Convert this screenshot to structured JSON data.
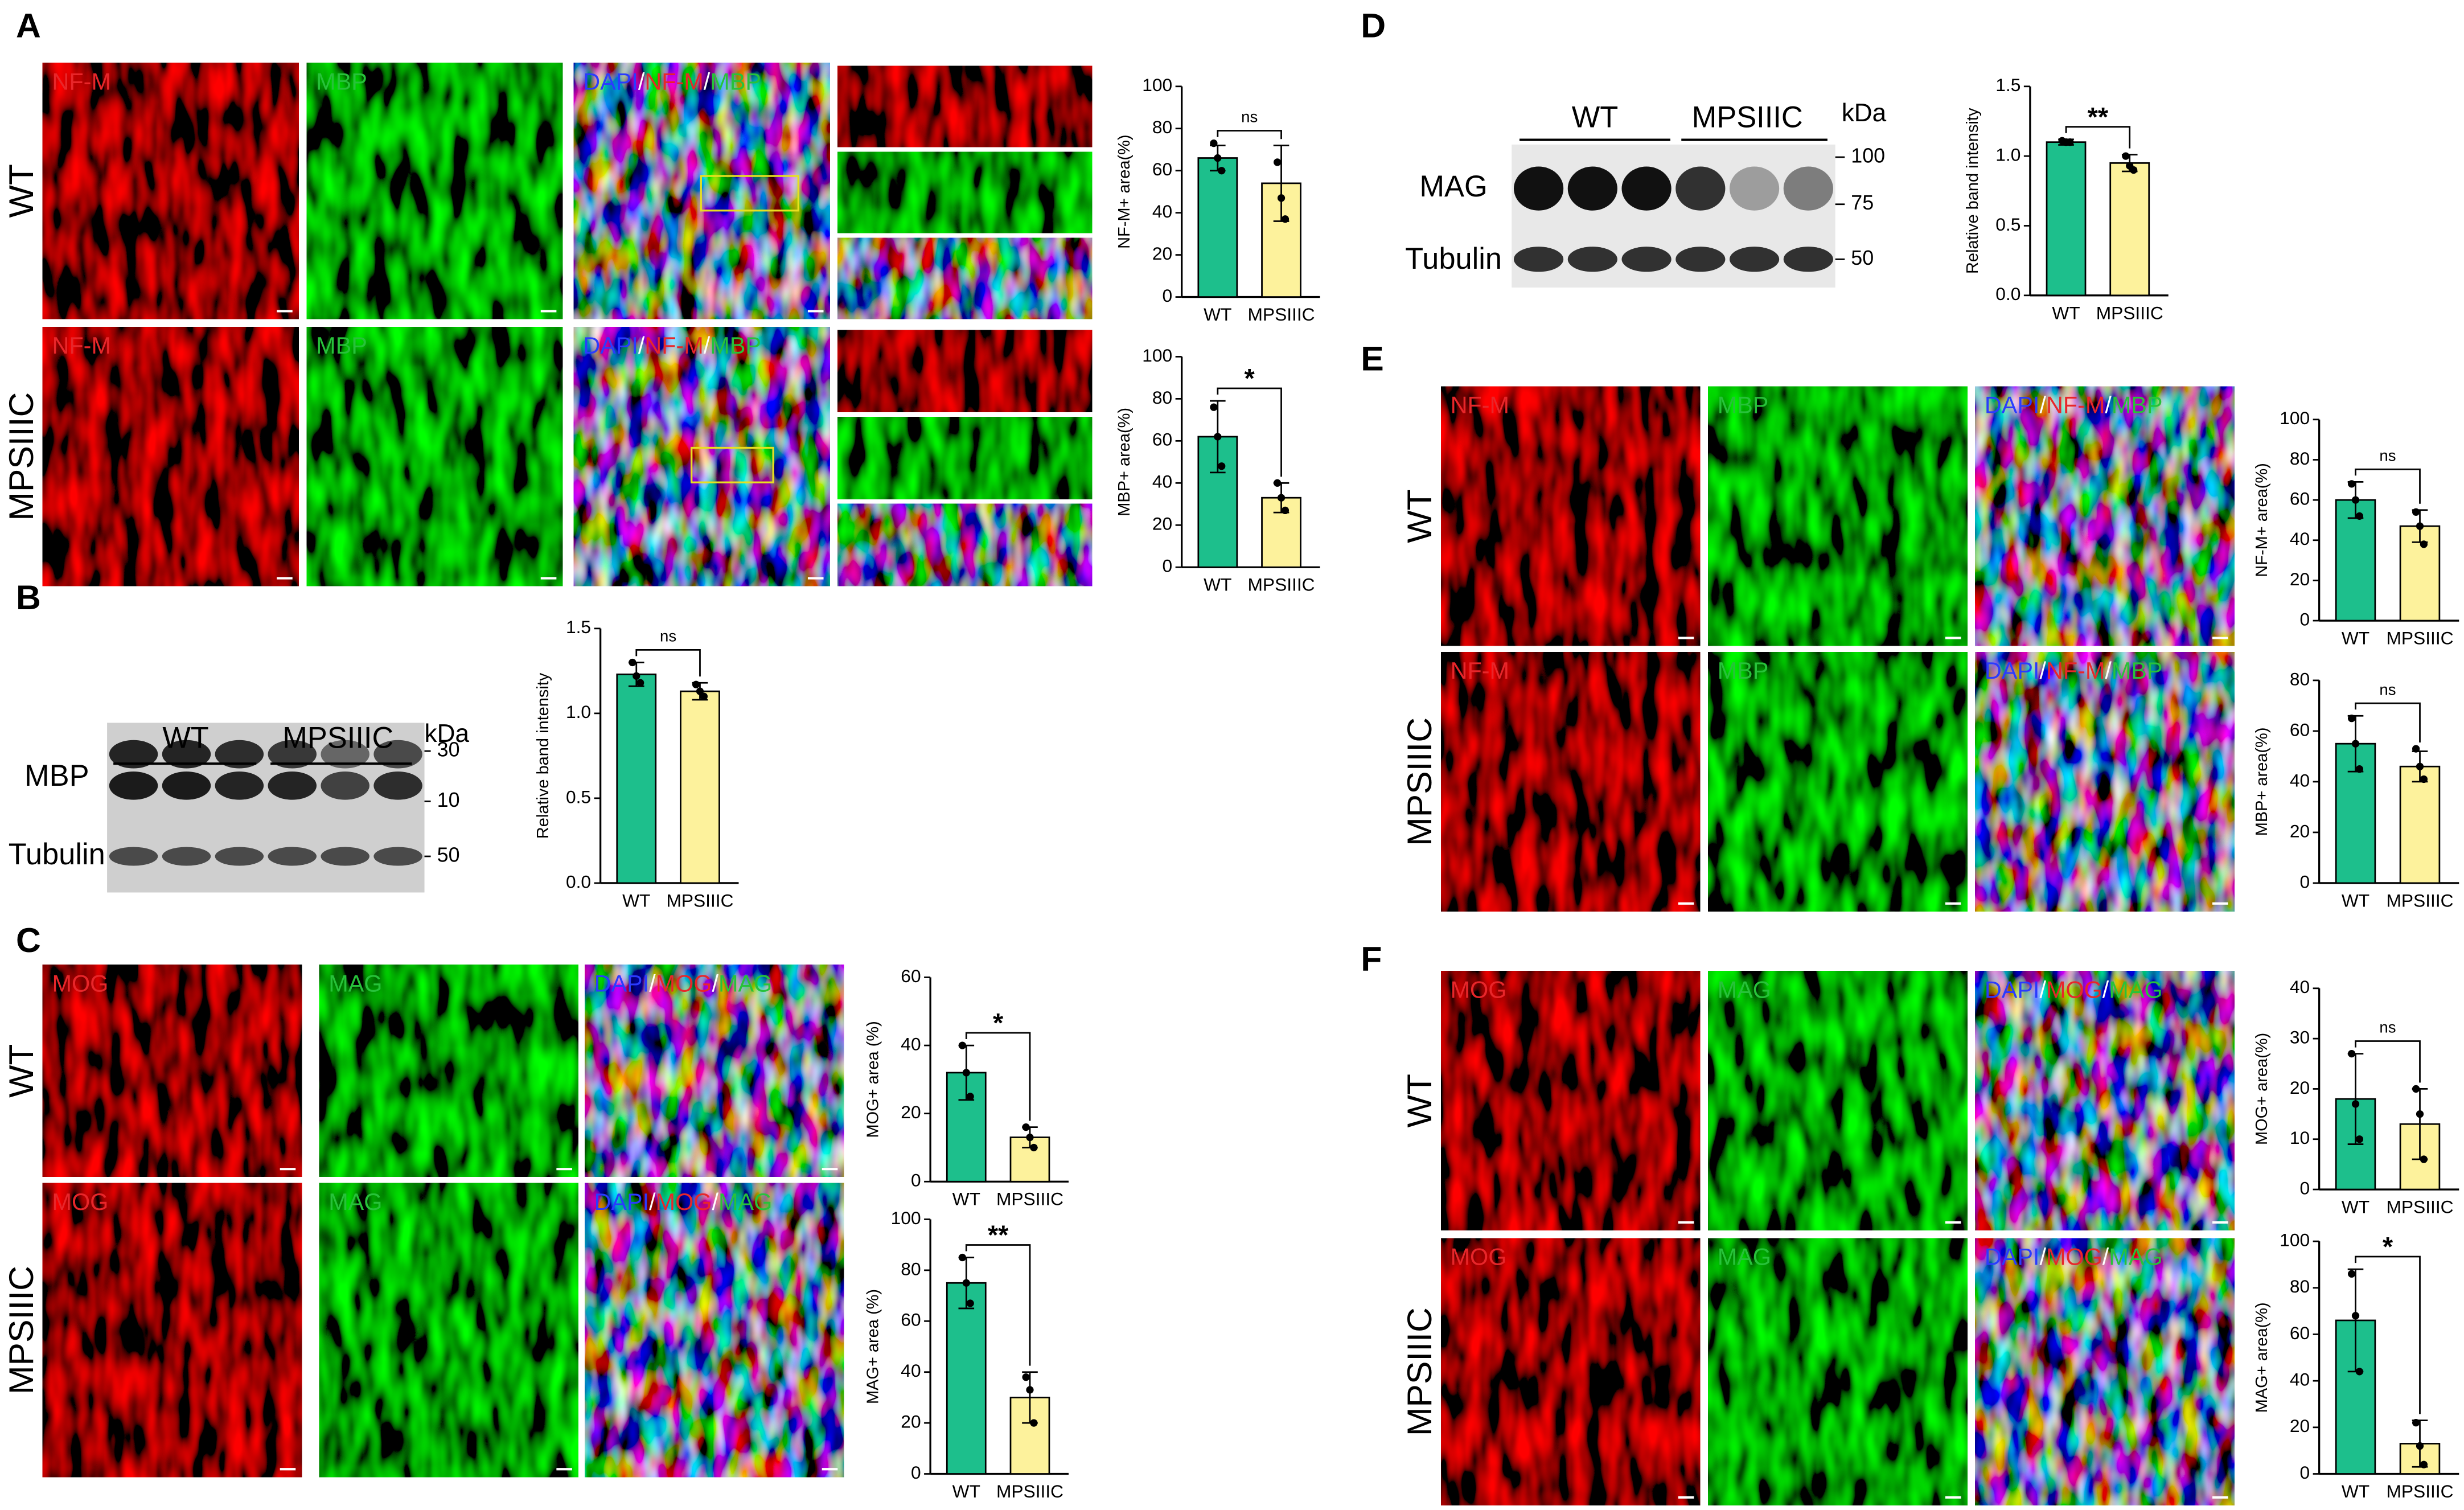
{
  "grids": [
    {
      "label": "A",
      "rows": [
        "WT",
        "MPSIIIC"
      ],
      "channels": [
        [
          "NF-M"
        ],
        [
          "MBP"
        ],
        [
          "DAPI",
          "/",
          "NF-M",
          "/",
          "MBP"
        ]
      ]
    },
    {
      "label": "C",
      "rows": [
        "WT",
        "MPSIIIC"
      ],
      "channels": [
        [
          "MOG"
        ],
        [
          "MAG"
        ],
        [
          "DAPI",
          "/",
          "MOG",
          "/",
          "MAG"
        ]
      ]
    },
    {
      "label": "E",
      "rows": [
        "WT",
        "MPSIIIC"
      ],
      "channels": [
        [
          "NF-M"
        ],
        [
          "MBP"
        ],
        [
          "DAPI",
          "/",
          "NF-M",
          "/",
          "MBP"
        ]
      ]
    },
    {
      "label": "F",
      "rows": [
        "WT",
        "MPSIIIC"
      ],
      "channels": [
        [
          "MOG"
        ],
        [
          "MAG"
        ],
        [
          "DAPI",
          "/",
          "MOG",
          "/",
          "MAG"
        ]
      ]
    }
  ],
  "blots": [
    {
      "label": "B",
      "groups": [
        "WT",
        "MPSIIIC"
      ],
      "unit": "kDa",
      "proteins": [
        "MBP",
        "Tubulin"
      ],
      "markers": [
        "30",
        "10",
        "50"
      ]
    },
    {
      "label": "D",
      "groups": [
        "WT",
        "MPSIIIC"
      ],
      "unit": "kDa",
      "proteins": [
        "MAG",
        "Tubulin"
      ],
      "markers": [
        "100",
        "75",
        "50"
      ]
    }
  ],
  "chart_data": [
    {
      "type": "bar",
      "ylabel": "NF-M+ area(%)",
      "categories": [
        "WT",
        "MPSIIIC"
      ],
      "values": [
        66,
        54
      ],
      "errors": [
        6,
        18
      ],
      "points": [
        [
          73,
          66,
          60
        ],
        [
          64,
          47,
          37
        ]
      ],
      "colors": [
        "#1dbf8c",
        "#fdf29c"
      ],
      "ylim": [
        0,
        100
      ],
      "yticks": [
        0,
        20,
        40,
        60,
        80,
        100
      ],
      "significance": "ns"
    },
    {
      "type": "bar",
      "ylabel": "MBP+ area(%)",
      "categories": [
        "WT",
        "MPSIIIC"
      ],
      "values": [
        62,
        33
      ],
      "errors": [
        17,
        7
      ],
      "points": [
        [
          76,
          62,
          48
        ],
        [
          40,
          33,
          27
        ]
      ],
      "colors": [
        "#1dbf8c",
        "#fdf29c"
      ],
      "ylim": [
        0,
        100
      ],
      "yticks": [
        0,
        20,
        40,
        60,
        80,
        100
      ],
      "significance": "*"
    },
    {
      "type": "bar",
      "ylabel": "Relative band intensity",
      "categories": [
        "WT",
        "MPSIIIC"
      ],
      "values": [
        1.23,
        1.13
      ],
      "errors": [
        0.07,
        0.05
      ],
      "points": [
        [
          1.3,
          1.22,
          1.18
        ],
        [
          1.17,
          1.13,
          1.1
        ]
      ],
      "colors": [
        "#1dbf8c",
        "#fdf29c"
      ],
      "ylim": [
        0,
        1.5
      ],
      "yticks": [
        {
          "value": 0,
          "label": "0.0"
        },
        {
          "value": 0.5,
          "label": "0.5"
        },
        {
          "value": 1,
          "label": "1.0"
        },
        {
          "value": 1.5,
          "label": "1.5"
        }
      ],
      "significance": "ns"
    },
    {
      "type": "bar",
      "ylabel": "MOG+ area (%)",
      "categories": [
        "WT",
        "MPSIIIC"
      ],
      "values": [
        32,
        13
      ],
      "errors": [
        8,
        3
      ],
      "points": [
        [
          40,
          32,
          25
        ],
        [
          16,
          13,
          10
        ]
      ],
      "colors": [
        "#1dbf8c",
        "#fdf29c"
      ],
      "ylim": [
        0,
        60
      ],
      "yticks": [
        0,
        20,
        40,
        60
      ],
      "significance": "*"
    },
    {
      "type": "bar",
      "ylabel": "MAG+ area (%)",
      "categories": [
        "WT",
        "MPSIIIC"
      ],
      "values": [
        75,
        30
      ],
      "errors": [
        10,
        10
      ],
      "points": [
        [
          85,
          75,
          67
        ],
        [
          38,
          33,
          20
        ]
      ],
      "colors": [
        "#1dbf8c",
        "#fdf29c"
      ],
      "ylim": [
        0,
        100
      ],
      "yticks": [
        0,
        20,
        40,
        60,
        80,
        100
      ],
      "significance": "**"
    },
    {
      "type": "bar",
      "ylabel": "Relative band intensity",
      "categories": [
        "WT",
        "MPSIIIC"
      ],
      "values": [
        1.1,
        0.95
      ],
      "errors": [
        0.02,
        0.06
      ],
      "points": [
        [
          1.11,
          1.1,
          1.1
        ],
        [
          1.0,
          0.93,
          0.9
        ]
      ],
      "colors": [
        "#1dbf8c",
        "#fdf29c"
      ],
      "ylim": [
        0,
        1.5
      ],
      "yticks": [
        {
          "value": 0,
          "label": "0.0"
        },
        {
          "value": 0.5,
          "label": "0.5"
        },
        {
          "value": 1,
          "label": "1.0"
        },
        {
          "value": 1.5,
          "label": "1.5"
        }
      ],
      "significance": "**"
    },
    {
      "type": "bar",
      "ylabel": "NF-M+ area(%)",
      "categories": [
        "WT",
        "MPSIIIC"
      ],
      "values": [
        60,
        47
      ],
      "errors": [
        9,
        8
      ],
      "points": [
        [
          68,
          60,
          52
        ],
        [
          54,
          47,
          38
        ]
      ],
      "colors": [
        "#1dbf8c",
        "#fdf29c"
      ],
      "ylim": [
        0,
        100
      ],
      "yticks": [
        0,
        20,
        40,
        60,
        80,
        100
      ],
      "significance": "ns"
    },
    {
      "type": "bar",
      "ylabel": "MBP+ area(%)",
      "categories": [
        "WT",
        "MPSIIIC"
      ],
      "values": [
        55,
        46
      ],
      "errors": [
        11,
        6
      ],
      "points": [
        [
          65,
          55,
          45
        ],
        [
          53,
          46,
          41
        ]
      ],
      "colors": [
        "#1dbf8c",
        "#fdf29c"
      ],
      "ylim": [
        0,
        80
      ],
      "yticks": [
        0,
        20,
        40,
        60,
        80
      ],
      "significance": "ns"
    },
    {
      "type": "bar",
      "ylabel": "MOG+ area(%)",
      "categories": [
        "WT",
        "MPSIIIC"
      ],
      "values": [
        18,
        13
      ],
      "errors": [
        9,
        7
      ],
      "points": [
        [
          27,
          17,
          10
        ],
        [
          20,
          15,
          6
        ]
      ],
      "colors": [
        "#1dbf8c",
        "#fdf29c"
      ],
      "ylim": [
        0,
        40
      ],
      "yticks": [
        0,
        10,
        20,
        30,
        40
      ],
      "significance": "ns"
    },
    {
      "type": "bar",
      "ylabel": "MAG+ area(%)",
      "categories": [
        "WT",
        "MPSIIIC"
      ],
      "values": [
        66,
        13
      ],
      "errors": [
        22,
        10
      ],
      "points": [
        [
          86,
          68,
          44
        ],
        [
          22,
          12,
          4
        ]
      ],
      "colors": [
        "#1dbf8c",
        "#fdf29c"
      ],
      "ylim": [
        0,
        100
      ],
      "yticks": [
        0,
        20,
        40,
        60,
        80,
        100
      ],
      "significance": "*"
    }
  ]
}
